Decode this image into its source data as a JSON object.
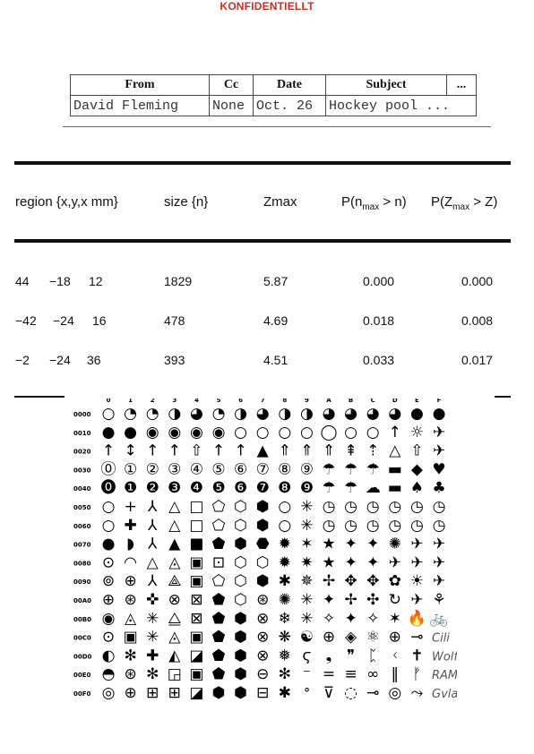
{
  "header": {
    "confidential": "KONFIDENTIELLT"
  },
  "memo": {
    "columns": [
      "From",
      "Cc",
      "Date",
      "Subject",
      "..."
    ],
    "values": [
      "David Fleming",
      "None",
      "Oct. 26",
      "Hockey pool ..."
    ]
  },
  "results": {
    "headers": {
      "region": "region {x,y,x mm}",
      "size": "size {n}",
      "zmax": "Zmax",
      "pn_pre": "P(n",
      "pn_sub": "max",
      "pn_post": " > n)",
      "pz_pre": "P(Z",
      "pz_sub": "max",
      "pz_post": " > Z)"
    },
    "rows": [
      {
        "x": "44",
        "y": "−18",
        "z": "12",
        "size": "1829",
        "zmax": "5.87",
        "pn": "0.000",
        "pz": "0.000"
      },
      {
        "x": "−42",
        "y": "−24",
        "z": "16",
        "size": "478",
        "zmax": "4.69",
        "pn": "0.018",
        "pz": "0.008"
      },
      {
        "x": "−2",
        "y": "−24",
        "z": "36",
        "size": "393",
        "zmax": "4.51",
        "pn": "0.033",
        "pz": "0.017"
      }
    ]
  },
  "symbols": {
    "col_labels": [
      "0",
      "1",
      "2",
      "3",
      "4",
      "5",
      "6",
      "7",
      "8",
      "9",
      "A",
      "B",
      "C",
      "D",
      "E",
      "F"
    ],
    "row_labels": [
      "0000",
      "0010",
      "0020",
      "0030",
      "0040",
      "0050",
      "0060",
      "0070",
      "0080",
      "0090",
      "00A0",
      "00B0",
      "00C0",
      "00D0",
      "00E0",
      "00F0"
    ],
    "glyphs": [
      [
        "○",
        "◔",
        "◔",
        "◑",
        "◕",
        "◔",
        "◑",
        "◕",
        "◑",
        "◑",
        "◕",
        "◕",
        "◕",
        "◕",
        "●",
        "●"
      ],
      [
        "●",
        "●",
        "◉",
        "◉",
        "◉",
        "◉",
        "○",
        "○",
        "○",
        "○",
        "◯",
        "○",
        "○",
        "↑",
        "☼",
        "✈"
      ],
      [
        "↑",
        "↕",
        "↑",
        "↑",
        "⇧",
        "↑",
        "↑",
        "▲",
        "⇑",
        "⇑",
        "⇑",
        "⇞",
        "⇡",
        "△",
        "⇧",
        "✈"
      ],
      [
        "⓪",
        "①",
        "②",
        "③",
        "④",
        "⑤",
        "⑥",
        "⑦",
        "⑧",
        "⑨",
        "☂",
        "☂",
        "☂",
        "▬",
        "◆",
        "♥"
      ],
      [
        "⓿",
        "❶",
        "❷",
        "❸",
        "❹",
        "❺",
        "❻",
        "❼",
        "❽",
        "❾",
        "☂",
        "☂",
        "☁",
        "▬",
        "♠",
        "♣"
      ],
      [
        "○",
        "+",
        "⅄",
        "△",
        "□",
        "⬠",
        "⬡",
        "⬢",
        "○",
        "✳",
        "◷",
        "◷",
        "◷",
        "◷",
        "◷",
        "◷"
      ],
      [
        "○",
        "✚",
        "⅄",
        "△",
        "□",
        "⬠",
        "⬡",
        "⬢",
        "○",
        "✳",
        "◷",
        "◷",
        "◷",
        "◷",
        "◷",
        "◷"
      ],
      [
        "●",
        "◗",
        "⅄",
        "▲",
        "■",
        "⬟",
        "⬢",
        "⬣",
        "✹",
        "✶",
        "★",
        "✦",
        "✦",
        "✺",
        "✈",
        "✈"
      ],
      [
        "⊙",
        "◠",
        "△",
        "◬",
        "▣",
        "⊡",
        "⬡",
        "⬡",
        "✹",
        "✷",
        "★",
        "✦",
        "✦",
        "✈",
        "✈",
        "✈"
      ],
      [
        "⊚",
        "⊕",
        "⅄",
        "⟁",
        "▣",
        "⬠",
        "⬡",
        "⬢",
        "✱",
        "✵",
        "✢",
        "✥",
        "✥",
        "✿",
        "☀",
        "✈"
      ],
      [
        "⊕",
        "⊛",
        "✜",
        "⊗",
        "⊠",
        "⬟",
        "⬡",
        "⊛",
        "✺",
        "✳",
        "✦",
        "✢",
        "✣",
        "↻",
        "✈",
        "⚘"
      ],
      [
        "◉",
        "◬",
        "✳",
        "⧋",
        "⊠",
        "⬟",
        "⬢",
        "⊗",
        "❄",
        "✳",
        "✧",
        "✦",
        "✧",
        "✶",
        "🔥",
        "🚲"
      ],
      [
        "⊙",
        "▣",
        "✳",
        "◬",
        "▣",
        "⬟",
        "⬢",
        "⊗",
        "❋",
        "☯",
        "⊕",
        "◈",
        "⚛",
        "⊕",
        "⊸",
        "Cili"
      ],
      [
        "◐",
        "✻",
        "✚",
        "◭",
        "◪",
        "⬟",
        "⬢",
        "⊗",
        "❅",
        "ϛ",
        "❟",
        "❞",
        "ᛈ",
        "ᚲ",
        "✝",
        "Wolfgang"
      ],
      [
        "◓",
        "⊛",
        "✻",
        "◲",
        "▣",
        "⬟",
        "⬢",
        "⊖",
        "✻",
        "⁻",
        "=",
        "≡",
        "∞",
        "‖",
        "ᚠ",
        "RAMF"
      ],
      [
        "◎",
        "⊕",
        "⊞",
        "⊞",
        "◪",
        "⬢",
        "⬢",
        "⊟",
        "✱",
        "ᐤ",
        "⊽",
        "◌",
        "⊸",
        "◎",
        "⤳",
        "Gvlabs"
      ]
    ]
  }
}
